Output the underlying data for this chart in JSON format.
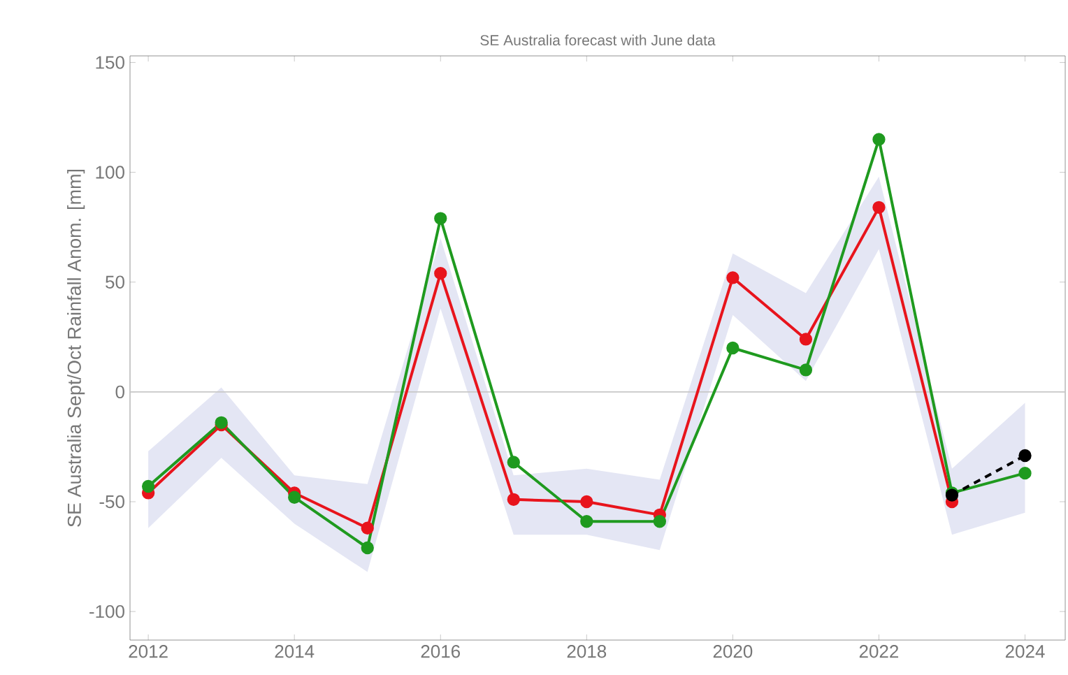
{
  "chart_data": {
    "type": "line",
    "title": "SE Australia forecast with June data",
    "ylabel": "SE Australia Sept/Oct Rainfall Anom. [mm]",
    "xlim": [
      2011.75,
      2024.55
    ],
    "ylim": [
      -113,
      153
    ],
    "xticks": [
      2012,
      2014,
      2016,
      2018,
      2020,
      2022,
      2024
    ],
    "yticks": [
      -100,
      -50,
      0,
      50,
      100,
      150
    ],
    "grid": false,
    "marker": "circle",
    "ref_lines": [
      {
        "axis": "y",
        "value": 0,
        "color": "#c8c8c8"
      }
    ],
    "series": [
      {
        "color": "#e8141c",
        "x": [
          2012,
          2013,
          2014,
          2015,
          2016,
          2017,
          2018,
          2019,
          2020,
          2021,
          2022,
          2023,
          2024
        ],
        "values": [
          -46,
          -15,
          -46,
          -62,
          54,
          -49,
          -50,
          -56,
          52,
          24,
          84,
          -50,
          null
        ],
        "lower": [
          -62,
          -30,
          -60,
          -82,
          38,
          -65,
          -65,
          -72,
          35,
          5,
          65,
          -65,
          -55
        ],
        "upper": [
          -27,
          2,
          -38,
          -42,
          70,
          -38,
          -35,
          -40,
          63,
          45,
          98,
          -35,
          -5
        ]
      },
      {
        "color": "#1f9a1f",
        "x": [
          2012,
          2013,
          2014,
          2015,
          2016,
          2017,
          2018,
          2019,
          2020,
          2021,
          2022,
          2023,
          2024
        ],
        "values": [
          -43,
          -14,
          -48,
          -71,
          79,
          -32,
          -59,
          -59,
          20,
          10,
          115,
          -46,
          -37
        ]
      },
      {
        "color": "#000000",
        "x": [
          2023,
          2024
        ],
        "values": [
          -47,
          -29
        ],
        "line_style": "dashed"
      }
    ]
  }
}
